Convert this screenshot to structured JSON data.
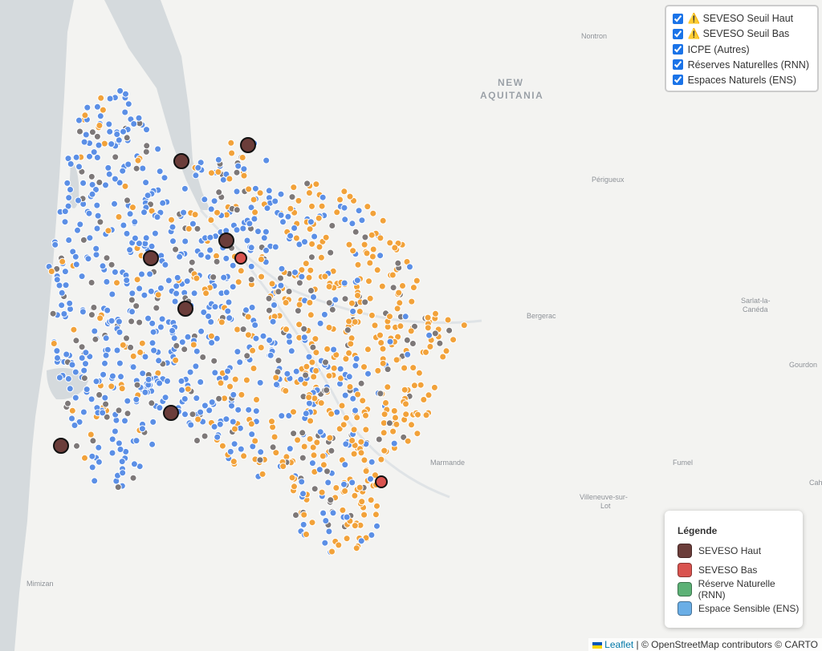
{
  "layer_control": {
    "items": [
      {
        "label": "⚠️ SEVESO Seuil Haut",
        "checked": true
      },
      {
        "label": "⚠️ SEVESO Seuil Bas",
        "checked": true
      },
      {
        "label": "ICPE (Autres)",
        "checked": true
      },
      {
        "label": "Réserves Naturelles (RNN)",
        "checked": true
      },
      {
        "label": "Espaces Naturels (ENS)",
        "checked": true
      }
    ]
  },
  "map_labels": [
    "Nontron",
    "NEW",
    "AQUITANIA",
    "Périgueux",
    "Bergerac",
    "Sarlat-la-",
    "Canéda",
    "Gourdon",
    "Marmande",
    "Fumel",
    "Villeneuve-sur-",
    "Lot",
    "Mimizan",
    "Cah"
  ],
  "legend": {
    "title": "Légende",
    "items": [
      {
        "label": "SEVESO Haut",
        "color": "#6b3d3a"
      },
      {
        "label": "SEVESO Bas",
        "color": "#d9534f"
      },
      {
        "label": "Réserve Naturelle (RNN)",
        "color": "#5cb176"
      },
      {
        "label": "Espace Sensible (ENS)",
        "color": "#6aaee6"
      }
    ]
  },
  "attribution": {
    "link": "Leaflet",
    "text": "| © OpenStreetMap contributors © CARTO"
  }
}
